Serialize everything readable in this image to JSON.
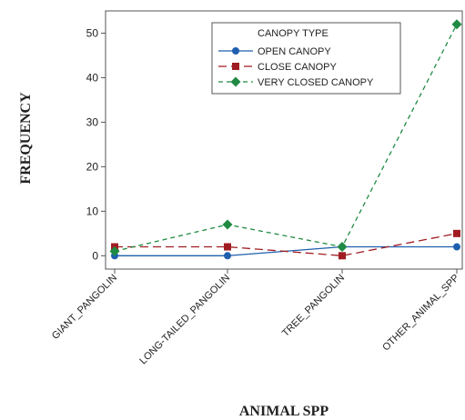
{
  "chart_data": {
    "type": "line",
    "categories": [
      "GIANT_PANGOLIN",
      "LONG-TAILED_PANGOLIN",
      "TREE_PANGOLIN",
      "OTHER_ANIMAL_SPP"
    ],
    "series": [
      {
        "name": "OPEN CANOPY",
        "values": [
          0,
          0,
          2,
          2
        ],
        "color": "#1f5fae",
        "marker": "circle",
        "dash": "solid"
      },
      {
        "name": "CLOSE CANOPY",
        "values": [
          2,
          2,
          0,
          5
        ],
        "color": "#a01c22",
        "marker": "square",
        "dash": "long-dash"
      },
      {
        "name": "VERY CLOSED CANOPY",
        "values": [
          1,
          7,
          2,
          52
        ],
        "color": "#1f8a43",
        "marker": "diamond",
        "dash": "short-dash"
      }
    ],
    "xlabel": "ANIMAL SPP",
    "ylabel": "FREQUENCY",
    "yticks": [
      0,
      10,
      20,
      30,
      40,
      50
    ],
    "ylim": [
      -3,
      55
    ],
    "legend": {
      "title": "CANOPY TYPE",
      "position": "top-right"
    },
    "grid": false
  }
}
